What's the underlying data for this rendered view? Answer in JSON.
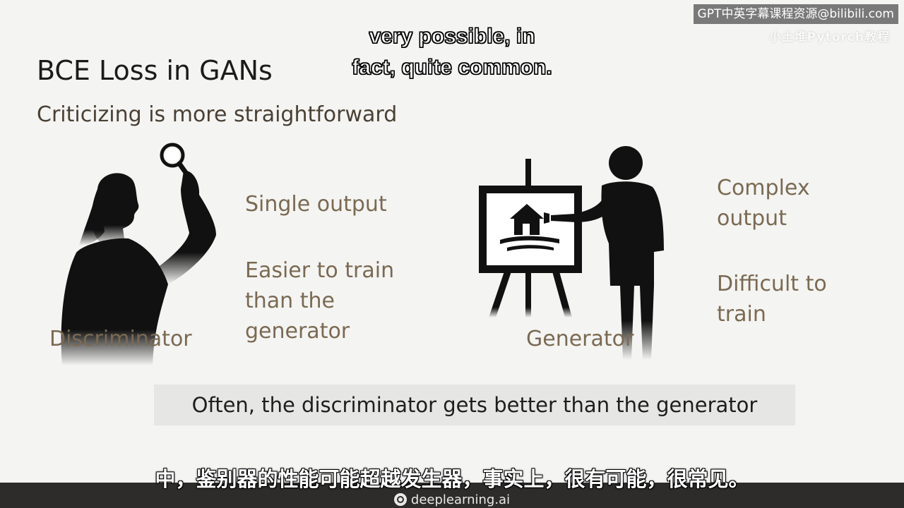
{
  "watermark": {
    "text": "GPT中英字幕课程资源@bilibili.com",
    "subtext": "小土堆Pytorch教程"
  },
  "captions": {
    "english_line1": "very possible, in",
    "english_line2": "fact, quite common.",
    "chinese": "中，鉴别器的性能可能超越发生器，事实上，很有可能，很常见。"
  },
  "slide": {
    "title": "BCE Loss in GANs",
    "subtitle": "Criticizing is more straightforward",
    "discriminator": {
      "label": "Discriminator",
      "point1": "Single output",
      "point2_line1": "Easier to train",
      "point2_line2": "than the",
      "point2_line3": "generator"
    },
    "generator": {
      "label": "Generator",
      "point1_line1": "Complex",
      "point1_line2": "output",
      "point2_line1": "Difficult to",
      "point2_line2": "train"
    },
    "banner": "Often, the discriminator gets better than the generator"
  },
  "footer": {
    "brand": "deeplearning.ai"
  },
  "icons": {
    "discriminator_figure": "person-with-magnifying-glass-icon",
    "generator_figure": "painter-at-easel-icon"
  },
  "colors": {
    "point_text": "#7a6a52",
    "title_text": "#1b1b1b",
    "banner_bg": "#e6e6e4",
    "footer_bg": "#2e2c2a"
  }
}
